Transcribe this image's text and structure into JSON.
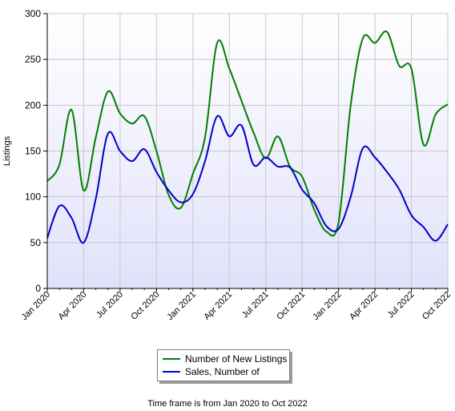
{
  "chart_data": {
    "type": "line",
    "ylabel": "Listings",
    "xlabel": "",
    "ylim": [
      0,
      300
    ],
    "yticks": [
      0,
      50,
      100,
      150,
      200,
      250,
      300
    ],
    "xlim": [
      "2020-01",
      "2022-10"
    ],
    "xticks": [
      "Jan 2020",
      "Apr 2020",
      "Jul 2020",
      "Oct 2020",
      "Jan 2021",
      "Apr 2021",
      "Jul 2021",
      "Oct 2021",
      "Jan 2022",
      "Apr 2022",
      "Jul 2022",
      "Oct 2022"
    ],
    "x": [
      "2020-01",
      "2020-02",
      "2020-03",
      "2020-04",
      "2020-05",
      "2020-06",
      "2020-07",
      "2020-08",
      "2020-09",
      "2020-10",
      "2020-11",
      "2020-12",
      "2021-01",
      "2021-02",
      "2021-03",
      "2021-04",
      "2021-05",
      "2021-06",
      "2021-07",
      "2021-08",
      "2021-09",
      "2021-10",
      "2021-11",
      "2021-12",
      "2022-01",
      "2022-02",
      "2022-03",
      "2022-04",
      "2022-05",
      "2022-06",
      "2022-07",
      "2022-08",
      "2022-09",
      "2022-10"
    ],
    "series": [
      {
        "name": "Number of New Listings",
        "color": "#008000",
        "values": [
          117,
          135,
          195,
          107,
          165,
          215,
          191,
          180,
          188,
          150,
          102,
          88,
          125,
          165,
          268,
          240,
          205,
          170,
          142,
          166,
          133,
          122,
          86,
          62,
          72,
          200,
          273,
          268,
          280,
          243,
          240,
          157,
          190,
          201
        ]
      },
      {
        "name": "Sales, Number of",
        "color": "#0000cc",
        "values": [
          55,
          90,
          77,
          50,
          98,
          169,
          150,
          139,
          152,
          127,
          107,
          94,
          103,
          139,
          188,
          166,
          178,
          135,
          143,
          133,
          132,
          108,
          93,
          68,
          65,
          100,
          153,
          143,
          127,
          108,
          80,
          67,
          52,
          70
        ]
      }
    ],
    "grid": true,
    "legend": "bottom-center",
    "footer": "Time frame is from Jan 2020 to Oct 2022"
  }
}
